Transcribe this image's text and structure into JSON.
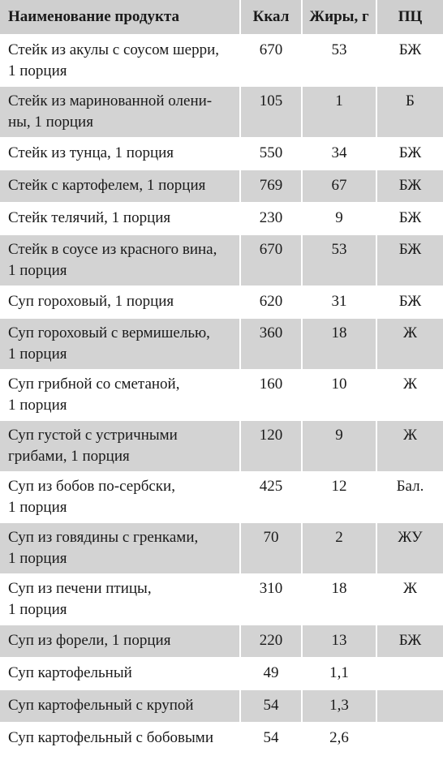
{
  "header": {
    "name": "Наименование продукта",
    "kcal": "Ккал",
    "fat": "Жиры, г",
    "pc": "ПЦ"
  },
  "rows": [
    {
      "line1": "Стейк из акулы с соусом шерри,",
      "line2": "1 порция",
      "kcal": "670",
      "fat": "53",
      "pc": "БЖ",
      "shade": "white"
    },
    {
      "line1": "Стейк из маринованной олени-",
      "line2": "ны, 1 порция",
      "kcal": "105",
      "fat": "1",
      "pc": "Б",
      "shade": "shaded"
    },
    {
      "line1": "Стейк из тунца, 1 порция",
      "line2": "",
      "kcal": "550",
      "fat": "34",
      "pc": "БЖ",
      "shade": "white"
    },
    {
      "line1": "Стейк с картофелем, 1 порция",
      "line2": "",
      "kcal": "769",
      "fat": "67",
      "pc": "БЖ",
      "shade": "shaded"
    },
    {
      "line1": "Стейк телячий, 1 порция",
      "line2": "",
      "kcal": "230",
      "fat": "9",
      "pc": "БЖ",
      "shade": "white"
    },
    {
      "line1": "Стейк в соусе из красного вина,",
      "line2": "1 порция",
      "kcal": "670",
      "fat": "53",
      "pc": "БЖ",
      "shade": "shaded"
    },
    {
      "line1": "Суп гороховый, 1 порция",
      "line2": "",
      "kcal": "620",
      "fat": "31",
      "pc": "БЖ",
      "shade": "white"
    },
    {
      "line1": "Суп гороховый с вермишелью,",
      "line2": "1 порция",
      "kcal": "360",
      "fat": "18",
      "pc": "Ж",
      "shade": "shaded"
    },
    {
      "line1": "Суп грибной со сметаной,",
      "line2": "1 порция",
      "kcal": "160",
      "fat": "10",
      "pc": "Ж",
      "shade": "white"
    },
    {
      "line1": "Суп густой с устричными",
      "line2": "грибами, 1 порция",
      "kcal": "120",
      "fat": "9",
      "pc": "Ж",
      "shade": "shaded"
    },
    {
      "line1": "Суп из бобов по-сербски,",
      "line2": "1 порция",
      "kcal": "425",
      "fat": "12",
      "pc": "Бал.",
      "shade": "white"
    },
    {
      "line1": "Суп из говядины с гренками,",
      "line2": "1 порция",
      "kcal": "70",
      "fat": "2",
      "pc": "ЖУ",
      "shade": "shaded"
    },
    {
      "line1": "Суп из печени птицы,",
      "line2": "1 порция",
      "kcal": "310",
      "fat": "18",
      "pc": "Ж",
      "shade": "white"
    },
    {
      "line1": "Суп из форели, 1 порция",
      "line2": "",
      "kcal": "220",
      "fat": "13",
      "pc": "БЖ",
      "shade": "shaded"
    },
    {
      "line1": "Суп картофельный",
      "line2": "",
      "kcal": "49",
      "fat": "1,1",
      "pc": "",
      "shade": "white"
    },
    {
      "line1": "Суп картофельный с крупой",
      "line2": "",
      "kcal": "54",
      "fat": "1,3",
      "pc": "",
      "shade": "shaded"
    },
    {
      "line1": "Суп картофельный с бобовыми",
      "line2": "",
      "kcal": "54",
      "fat": "2,6",
      "pc": "",
      "shade": "white"
    }
  ]
}
